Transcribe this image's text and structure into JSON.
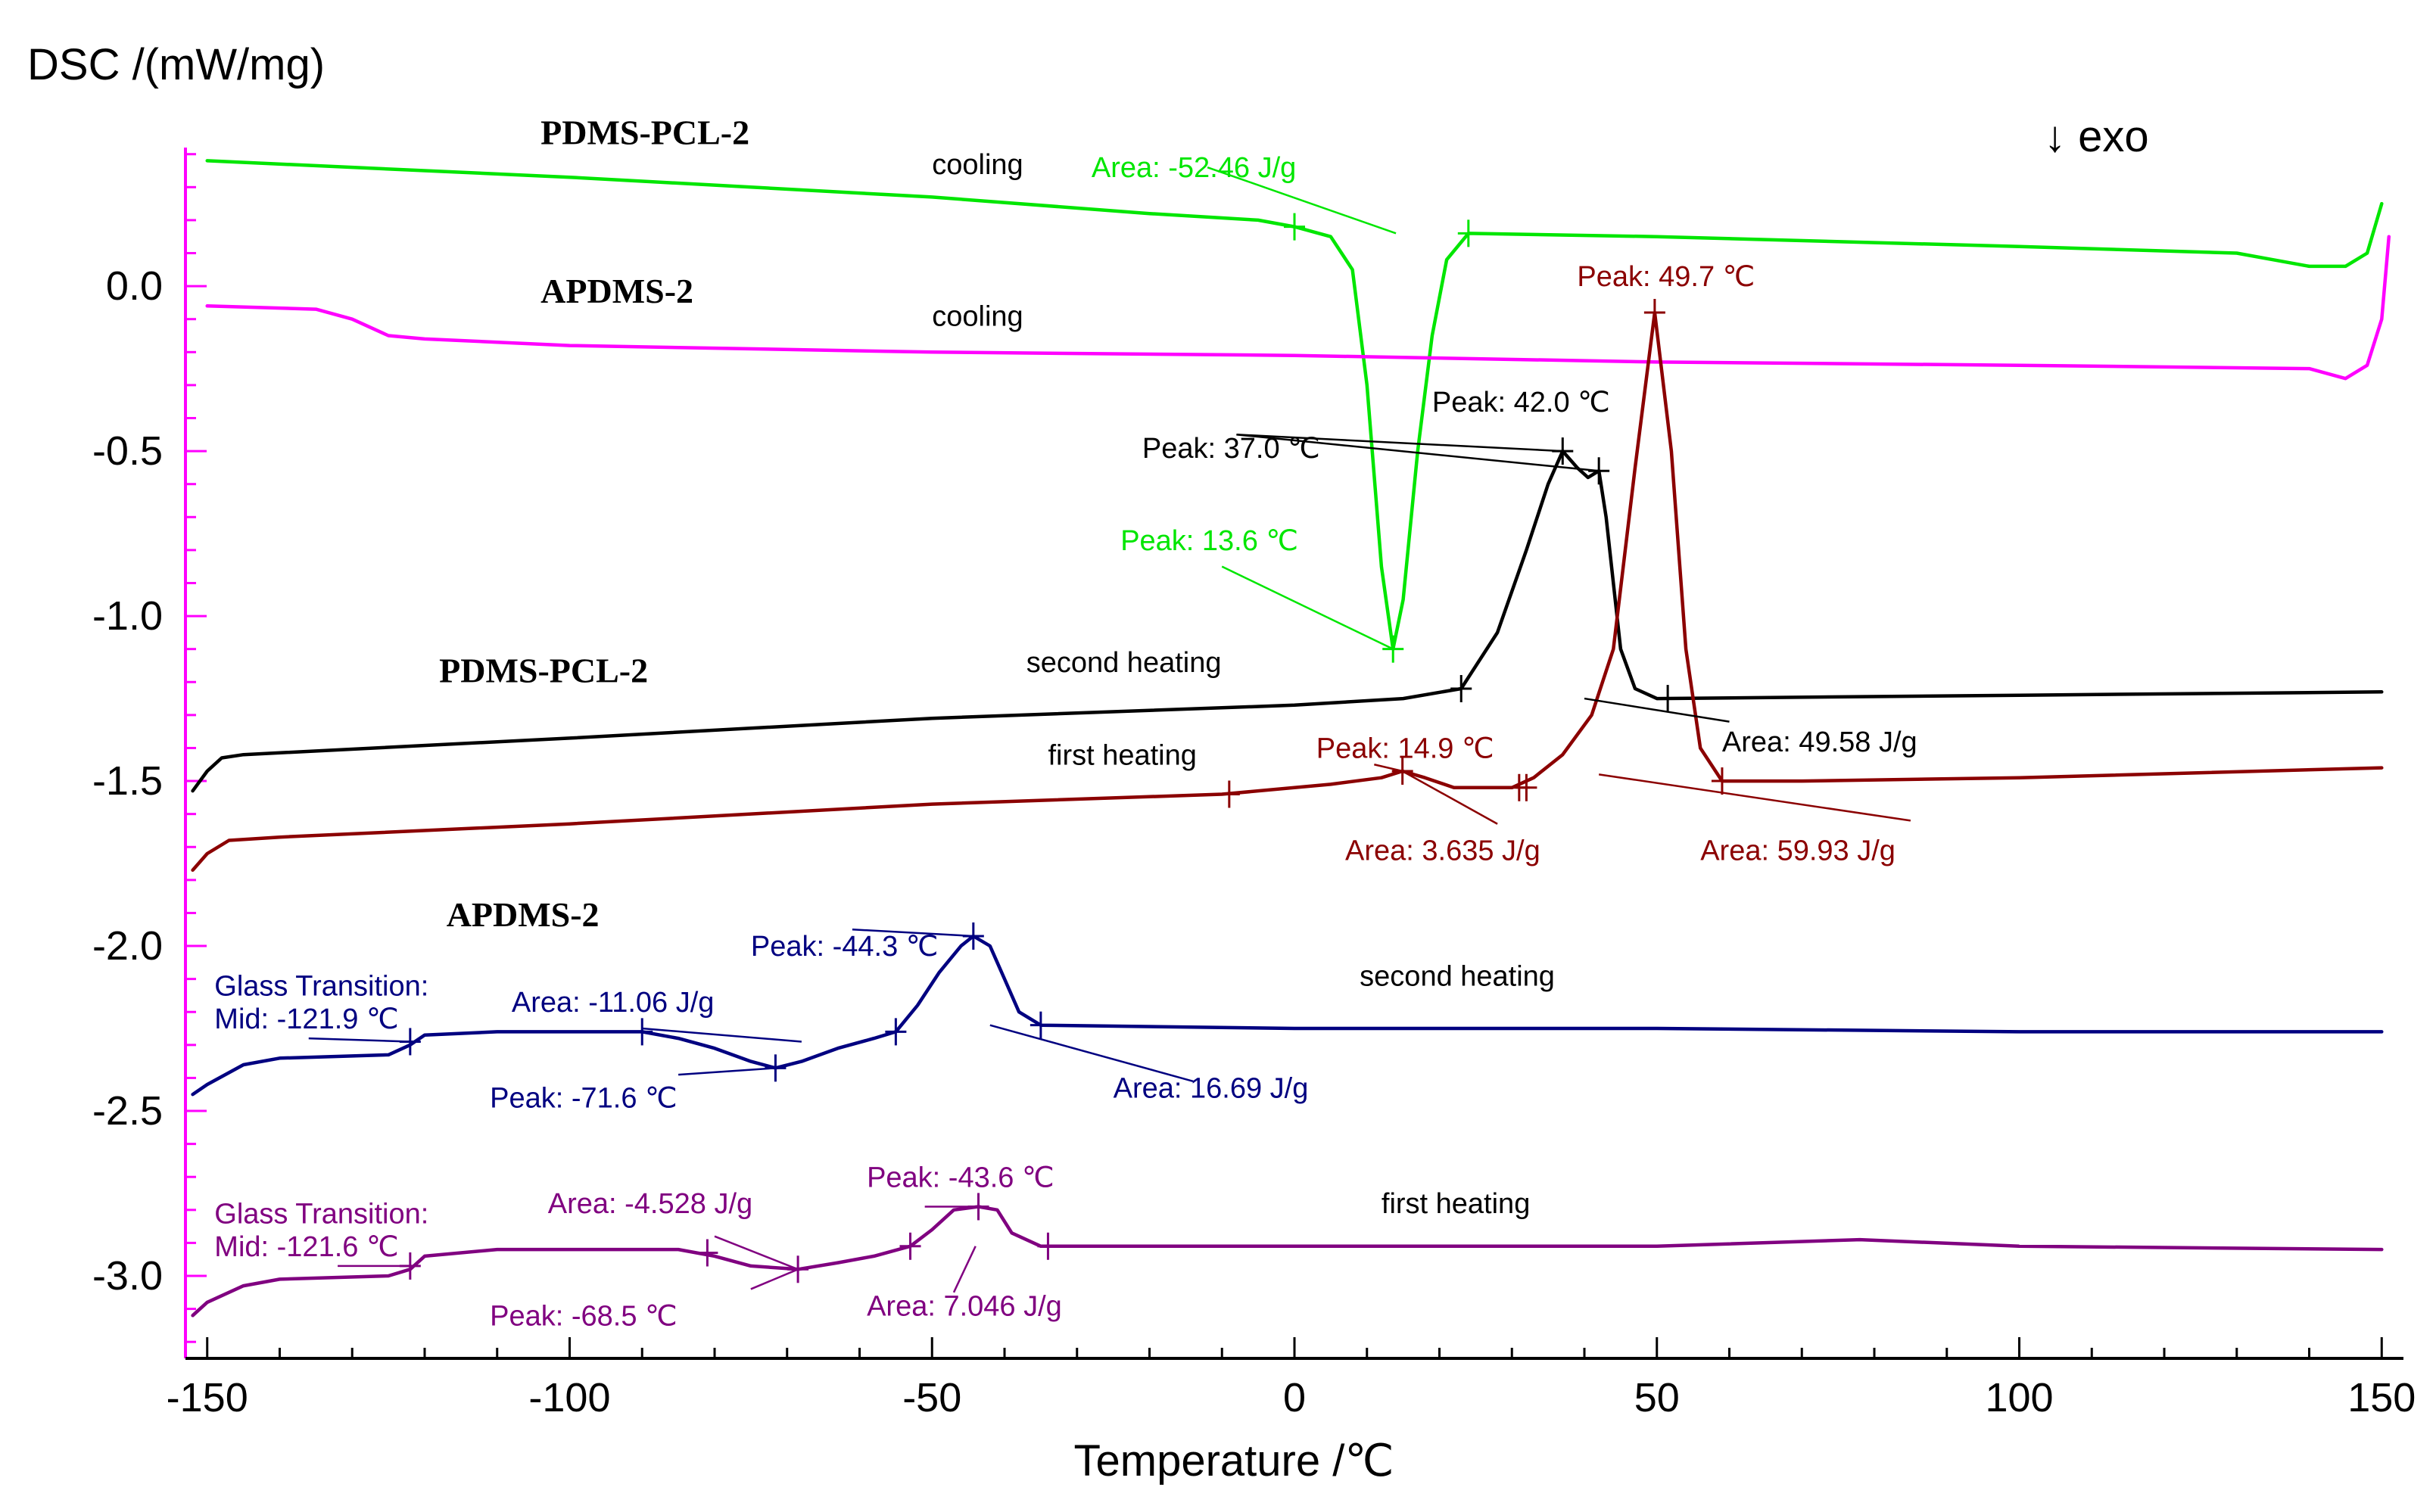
{
  "chart_data": {
    "type": "line",
    "title": "",
    "ylabel": "DSC /(mW/mg)",
    "xlabel": "Temperature /℃",
    "exo_label": "↓ exo",
    "xlim": [
      -153,
      153
    ],
    "ylim": [
      -3.25,
      0.42
    ],
    "xticks": [
      -150,
      -100,
      -50,
      0,
      50,
      100,
      150
    ],
    "xtick_labels": [
      "-150",
      "-100",
      "-50",
      "0",
      "50",
      "100",
      "150"
    ],
    "yticks": [
      0.0,
      -0.5,
      -1.0,
      -1.5,
      -2.0,
      -2.5,
      -3.0
    ],
    "ytick_labels": [
      "0.0",
      "-0.5",
      "-1.0",
      "-1.5",
      "-2.0",
      "-2.5",
      "-3.0"
    ],
    "grid": false,
    "colors": {
      "axis": "#ff00ff",
      "pcl_cooling": "#00e600",
      "apdms_cooling": "#ff00ff",
      "pcl_second_heating": "#000000",
      "pcl_first_heating": "#8b0000",
      "apdms_second_heating": "#000080",
      "apdms_first_heating": "#800080"
    },
    "series": [
      {
        "color": "#00e600",
        "points": [
          [
            -150,
            0.38
          ],
          [
            -100,
            0.33
          ],
          [
            -50,
            0.27
          ],
          [
            -20,
            0.22
          ],
          [
            -5,
            0.2
          ],
          [
            0,
            0.18
          ],
          [
            5,
            0.15
          ],
          [
            8,
            0.05
          ],
          [
            10,
            -0.3
          ],
          [
            12,
            -0.85
          ],
          [
            13.6,
            -1.1
          ],
          [
            15,
            -0.95
          ],
          [
            17,
            -0.5
          ],
          [
            19,
            -0.15
          ],
          [
            21,
            0.08
          ],
          [
            24,
            0.16
          ],
          [
            50,
            0.15
          ],
          [
            100,
            0.12
          ],
          [
            130,
            0.1
          ],
          [
            135,
            0.08
          ],
          [
            140,
            0.06
          ],
          [
            145,
            0.06
          ],
          [
            148,
            0.1
          ],
          [
            150,
            0.25
          ]
        ]
      },
      {
        "color": "#ff00ff",
        "points": [
          [
            -150,
            -0.06
          ],
          [
            -135,
            -0.07
          ],
          [
            -130,
            -0.1
          ],
          [
            -125,
            -0.15
          ],
          [
            -120,
            -0.16
          ],
          [
            -100,
            -0.18
          ],
          [
            -50,
            -0.2
          ],
          [
            0,
            -0.21
          ],
          [
            50,
            -0.23
          ],
          [
            100,
            -0.24
          ],
          [
            140,
            -0.25
          ],
          [
            145,
            -0.28
          ],
          [
            148,
            -0.24
          ],
          [
            150,
            -0.1
          ],
          [
            151,
            0.15
          ]
        ]
      },
      {
        "color": "#000000",
        "points": [
          [
            -152,
            -1.53
          ],
          [
            -150,
            -1.47
          ],
          [
            -148,
            -1.43
          ],
          [
            -145,
            -1.42
          ],
          [
            -100,
            -1.37
          ],
          [
            -50,
            -1.31
          ],
          [
            0,
            -1.27
          ],
          [
            15,
            -1.25
          ],
          [
            23,
            -1.22
          ],
          [
            28,
            -1.05
          ],
          [
            32,
            -0.8
          ],
          [
            35,
            -0.6
          ],
          [
            37,
            -0.5
          ],
          [
            39,
            -0.55
          ],
          [
            40.5,
            -0.58
          ],
          [
            42,
            -0.56
          ],
          [
            43,
            -0.7
          ],
          [
            45,
            -1.1
          ],
          [
            47,
            -1.22
          ],
          [
            50,
            -1.25
          ],
          [
            100,
            -1.24
          ],
          [
            150,
            -1.23
          ]
        ]
      },
      {
        "color": "#8b0000",
        "points": [
          [
            -152,
            -1.77
          ],
          [
            -150,
            -1.72
          ],
          [
            -147,
            -1.68
          ],
          [
            -140,
            -1.67
          ],
          [
            -100,
            -1.63
          ],
          [
            -50,
            -1.57
          ],
          [
            -10,
            -1.54
          ],
          [
            5,
            -1.51
          ],
          [
            12,
            -1.49
          ],
          [
            14.9,
            -1.47
          ],
          [
            18,
            -1.49
          ],
          [
            22,
            -1.52
          ],
          [
            30,
            -1.52
          ],
          [
            33,
            -1.49
          ],
          [
            37,
            -1.42
          ],
          [
            41,
            -1.3
          ],
          [
            44,
            -1.1
          ],
          [
            47,
            -0.55
          ],
          [
            49.7,
            -0.08
          ],
          [
            52,
            -0.5
          ],
          [
            54,
            -1.1
          ],
          [
            56,
            -1.4
          ],
          [
            59,
            -1.5
          ],
          [
            70,
            -1.5
          ],
          [
            100,
            -1.49
          ],
          [
            150,
            -1.46
          ]
        ]
      },
      {
        "color": "#000080",
        "points": [
          [
            -152,
            -2.45
          ],
          [
            -150,
            -2.42
          ],
          [
            -145,
            -2.36
          ],
          [
            -140,
            -2.34
          ],
          [
            -125,
            -2.33
          ],
          [
            -122,
            -2.3
          ],
          [
            -120,
            -2.27
          ],
          [
            -110,
            -2.26
          ],
          [
            -90,
            -2.26
          ],
          [
            -85,
            -2.28
          ],
          [
            -80,
            -2.31
          ],
          [
            -75,
            -2.35
          ],
          [
            -71.6,
            -2.37
          ],
          [
            -68,
            -2.35
          ],
          [
            -63,
            -2.31
          ],
          [
            -58,
            -2.28
          ],
          [
            -55,
            -2.26
          ],
          [
            -52,
            -2.18
          ],
          [
            -49,
            -2.08
          ],
          [
            -46,
            -2.0
          ],
          [
            -44.3,
            -1.97
          ],
          [
            -42,
            -2.0
          ],
          [
            -40,
            -2.1
          ],
          [
            -38,
            -2.2
          ],
          [
            -35,
            -2.24
          ],
          [
            0,
            -2.25
          ],
          [
            50,
            -2.25
          ],
          [
            100,
            -2.26
          ],
          [
            150,
            -2.26
          ]
        ]
      },
      {
        "color": "#800080",
        "points": [
          [
            -152,
            -3.12
          ],
          [
            -150,
            -3.08
          ],
          [
            -145,
            -3.03
          ],
          [
            -140,
            -3.01
          ],
          [
            -125,
            -3.0
          ],
          [
            -122,
            -2.98
          ],
          [
            -120,
            -2.94
          ],
          [
            -110,
            -2.92
          ],
          [
            -85,
            -2.92
          ],
          [
            -80,
            -2.94
          ],
          [
            -75,
            -2.97
          ],
          [
            -68.5,
            -2.98
          ],
          [
            -63,
            -2.96
          ],
          [
            -58,
            -2.94
          ],
          [
            -53,
            -2.91
          ],
          [
            -50,
            -2.86
          ],
          [
            -47,
            -2.8
          ],
          [
            -43.6,
            -2.79
          ],
          [
            -41,
            -2.8
          ],
          [
            -39,
            -2.87
          ],
          [
            -35,
            -2.91
          ],
          [
            0,
            -2.91
          ],
          [
            50,
            -2.91
          ],
          [
            78,
            -2.89
          ],
          [
            100,
            -2.91
          ],
          [
            150,
            -2.92
          ]
        ]
      }
    ],
    "markers": [
      {
        "color": "#00e600",
        "x": 0,
        "y": 0.18
      },
      {
        "color": "#00e600",
        "x": 24,
        "y": 0.16
      },
      {
        "color": "#00e600",
        "x": 13.6,
        "y": -1.1
      },
      {
        "color": "#000000",
        "x": 37,
        "y": -0.5
      },
      {
        "color": "#000000",
        "x": 42,
        "y": -0.56
      },
      {
        "color": "#000000",
        "x": 23,
        "y": -1.22
      },
      {
        "color": "#000000",
        "x": 51.5,
        "y": -1.25
      },
      {
        "color": "#8b0000",
        "x": 49.7,
        "y": -0.08
      },
      {
        "color": "#8b0000",
        "x": -9,
        "y": -1.54
      },
      {
        "color": "#8b0000",
        "x": 14.9,
        "y": -1.47
      },
      {
        "color": "#8b0000",
        "x": 31,
        "y": -1.52
      },
      {
        "color": "#8b0000",
        "x": 32,
        "y": -1.52
      },
      {
        "color": "#8b0000",
        "x": 59,
        "y": -1.5
      },
      {
        "color": "#000080",
        "x": -122,
        "y": -2.29
      },
      {
        "color": "#000080",
        "x": -90,
        "y": -2.26
      },
      {
        "color": "#000080",
        "x": -71.6,
        "y": -2.37
      },
      {
        "color": "#000080",
        "x": -55,
        "y": -2.26
      },
      {
        "color": "#000080",
        "x": -44.3,
        "y": -1.97
      },
      {
        "color": "#000080",
        "x": -35,
        "y": -2.24
      },
      {
        "color": "#800080",
        "x": -122,
        "y": -2.97
      },
      {
        "color": "#800080",
        "x": -81,
        "y": -2.93
      },
      {
        "color": "#800080",
        "x": -68.5,
        "y": -2.98
      },
      {
        "color": "#800080",
        "x": -53,
        "y": -2.91
      },
      {
        "color": "#800080",
        "x": -43.6,
        "y": -2.79
      },
      {
        "color": "#800080",
        "x": -34,
        "y": -2.91
      }
    ],
    "leaders": [
      {
        "color": "#00e600",
        "x1": -12,
        "y1": 0.36,
        "x2": 14,
        "y2": 0.16
      },
      {
        "color": "#00e600",
        "x1": -10,
        "y1": -0.85,
        "x2": 13.6,
        "y2": -1.1
      },
      {
        "color": "#000000",
        "x1": -8,
        "y1": -0.45,
        "x2": 37,
        "y2": -0.5
      },
      {
        "color": "#000000",
        "x1": -8,
        "y1": -0.45,
        "x2": 42,
        "y2": -0.56
      },
      {
        "color": "#000000",
        "x1": 40,
        "y1": -1.25,
        "x2": 60,
        "y2": -1.32
      },
      {
        "color": "#8b0000",
        "x1": 11,
        "y1": -1.45,
        "x2": 14.9,
        "y2": -1.47
      },
      {
        "color": "#8b0000",
        "x1": 14.9,
        "y1": -1.47,
        "x2": 28,
        "y2": -1.63
      },
      {
        "color": "#8b0000",
        "x1": 42,
        "y1": -1.48,
        "x2": 85,
        "y2": -1.62
      },
      {
        "color": "#000080",
        "x1": -136,
        "y1": -2.28,
        "x2": -122,
        "y2": -2.29
      },
      {
        "color": "#000080",
        "x1": -90,
        "y1": -2.25,
        "x2": -68,
        "y2": -2.29
      },
      {
        "color": "#000080",
        "x1": -85,
        "y1": -2.39,
        "x2": -71.6,
        "y2": -2.37
      },
      {
        "color": "#000080",
        "x1": -61,
        "y1": -1.95,
        "x2": -44.3,
        "y2": -1.97
      },
      {
        "color": "#000080",
        "x1": -42,
        "y1": -2.24,
        "x2": -14,
        "y2": -2.41
      },
      {
        "color": "#800080",
        "x1": -132,
        "y1": -2.97,
        "x2": -122,
        "y2": -2.97
      },
      {
        "color": "#800080",
        "x1": -80,
        "y1": -2.88,
        "x2": -68.5,
        "y2": -2.98
      },
      {
        "color": "#800080",
        "x1": -75,
        "y1": -3.04,
        "x2": -68.5,
        "y2": -2.98
      },
      {
        "color": "#800080",
        "x1": -51,
        "y1": -2.79,
        "x2": -43.6,
        "y2": -2.79
      },
      {
        "color": "#800080",
        "x1": -44,
        "y1": -2.91,
        "x2": -47,
        "y2": -3.05
      }
    ],
    "sample_labels": [
      {
        "text": "PDMS-PCL-2",
        "x": -104,
        "y": 0.43
      },
      {
        "text": "APDMS-2",
        "x": -104,
        "y": -0.05
      },
      {
        "text": "PDMS-PCL-2",
        "x": -118,
        "y": -1.2
      },
      {
        "text": "APDMS-2",
        "x": -117,
        "y": -1.94
      }
    ],
    "annotations": [
      {
        "text": "cooling",
        "x": -50,
        "y": 0.34,
        "color": "#000000",
        "anchor": "start"
      },
      {
        "text": "Area: -52.46 J/g",
        "x": -28,
        "y": 0.33,
        "color": "#00e600",
        "anchor": "start"
      },
      {
        "text": "cooling",
        "x": -50,
        "y": -0.12,
        "color": "#000000",
        "anchor": "start"
      },
      {
        "text": "Peak: 49.7 ℃",
        "x": 39,
        "y": 0.0,
        "color": "#8b0000",
        "anchor": "start"
      },
      {
        "text": "Peak: 42.0 ℃",
        "x": 19,
        "y": -0.38,
        "color": "#000000",
        "anchor": "start"
      },
      {
        "text": "Peak: 37.0 ℃",
        "x": -21,
        "y": -0.52,
        "color": "#000000",
        "anchor": "start"
      },
      {
        "text": "Peak: 13.6 ℃",
        "x": -24,
        "y": -0.8,
        "color": "#00e600",
        "anchor": "start"
      },
      {
        "text": "second heating",
        "x": -37,
        "y": -1.17,
        "color": "#000000",
        "anchor": "start"
      },
      {
        "text": "first heating",
        "x": -34,
        "y": -1.45,
        "color": "#000000",
        "anchor": "start"
      },
      {
        "text": "Peak: 14.9 ℃",
        "x": 3,
        "y": -1.43,
        "color": "#8b0000",
        "anchor": "start"
      },
      {
        "text": "Area: 49.58 J/g",
        "x": 59,
        "y": -1.41,
        "color": "#000000",
        "anchor": "start"
      },
      {
        "text": "Area: 3.635 J/g",
        "x": 7,
        "y": -1.74,
        "color": "#8b0000",
        "anchor": "start"
      },
      {
        "text": "Area: 59.93 J/g",
        "x": 56,
        "y": -1.74,
        "color": "#8b0000",
        "anchor": "start"
      },
      {
        "text": "Peak: -44.3 ℃",
        "x": -75,
        "y": -2.03,
        "color": "#000080",
        "anchor": "start"
      },
      {
        "text": "second heating",
        "x": 9,
        "y": -2.12,
        "color": "#000000",
        "anchor": "start"
      },
      {
        "text": "Glass Transition:",
        "x": -149,
        "y": -2.15,
        "color": "#000080",
        "anchor": "start"
      },
      {
        "text": "Mid:  -121.9 ℃",
        "x": -149,
        "y": -2.25,
        "color": "#000080",
        "anchor": "start"
      },
      {
        "text": "Area: -11.06 J/g",
        "x": -108,
        "y": -2.2,
        "color": "#000080",
        "anchor": "start"
      },
      {
        "text": "Peak: -71.6 ℃",
        "x": -111,
        "y": -2.49,
        "color": "#000080",
        "anchor": "start"
      },
      {
        "text": "Area: 16.69 J/g",
        "x": -25,
        "y": -2.46,
        "color": "#000080",
        "anchor": "start"
      },
      {
        "text": "Peak: -43.6 ℃",
        "x": -59,
        "y": -2.73,
        "color": "#800080",
        "anchor": "start"
      },
      {
        "text": "first heating",
        "x": 12,
        "y": -2.81,
        "color": "#000000",
        "anchor": "start"
      },
      {
        "text": "Glass Transition:",
        "x": -149,
        "y": -2.84,
        "color": "#800080",
        "anchor": "start"
      },
      {
        "text": "Mid:  -121.6 ℃",
        "x": -149,
        "y": -2.94,
        "color": "#800080",
        "anchor": "start"
      },
      {
        "text": "Area: -4.528 J/g",
        "x": -103,
        "y": -2.81,
        "color": "#800080",
        "anchor": "start"
      },
      {
        "text": "Peak: -68.5 ℃",
        "x": -111,
        "y": -3.15,
        "color": "#800080",
        "anchor": "start"
      },
      {
        "text": "Area: 7.046 J/g",
        "x": -59,
        "y": -3.12,
        "color": "#800080",
        "anchor": "start"
      }
    ]
  }
}
